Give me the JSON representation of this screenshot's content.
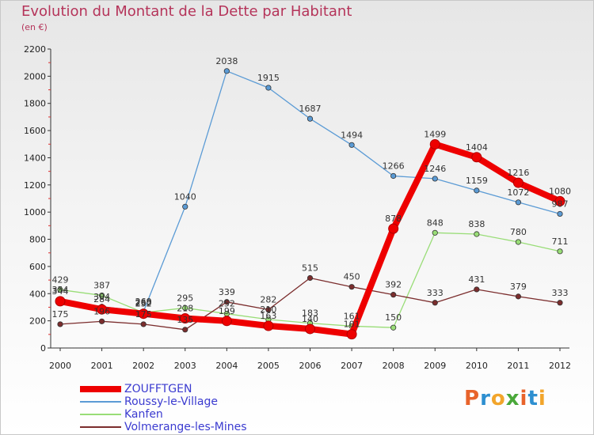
{
  "header": {
    "title": "Evolution du Montant de la Dette par Habitant",
    "subtitle": "(en €)"
  },
  "logo": {
    "text": "Proxiti",
    "colors": [
      "#e8632b",
      "#2d8fd0",
      "#f2a52b",
      "#4aa83a",
      "#e8632b",
      "#2d8fd0",
      "#f2a52b"
    ]
  },
  "chart_data": {
    "type": "line",
    "x": [
      2000,
      2001,
      2002,
      2003,
      2004,
      2005,
      2006,
      2007,
      2008,
      2009,
      2010,
      2011,
      2012
    ],
    "ylim": [
      0,
      2200
    ],
    "yticks": [
      0,
      200,
      400,
      600,
      800,
      1000,
      1200,
      1400,
      1600,
      1800,
      2000,
      2200
    ],
    "grid": false,
    "legend_position": "bottom-left",
    "series": [
      {
        "name": "ZOUFFTGEN",
        "color": "#ee0000",
        "values": [
          344,
          284,
          252,
          218,
          199,
          163,
          140,
          101,
          878,
          1499,
          1404,
          1216,
          1080
        ],
        "labels": [
          "344",
          "284",
          "252",
          "218",
          "199",
          "163",
          "140",
          "101",
          "878",
          "1499",
          "1404",
          "1216",
          "1080"
        ]
      },
      {
        "name": "Roussy-le-Village",
        "color": "#5b9bd5",
        "values": [
          354,
          304,
          269,
          1040,
          2038,
          1915,
          1687,
          1494,
          1266,
          1246,
          1159,
          1072,
          987
        ],
        "labels": [
          "354",
          "304",
          "269",
          "1040",
          "2038",
          "1915",
          "1687",
          "1494",
          "1266",
          "1246",
          "1159",
          "1072",
          "987"
        ]
      },
      {
        "name": "Kanfen",
        "color": "#99dd77",
        "values": [
          429,
          387,
          260,
          295,
          252,
          210,
          183,
          161,
          150,
          848,
          838,
          780,
          711
        ],
        "labels": [
          "429",
          "387",
          "260",
          "295",
          "252",
          "210",
          "183",
          "161",
          "150",
          "848",
          "838",
          "780",
          "711"
        ]
      },
      {
        "name": "Volmerange-les-Mines",
        "color": "#7b2d2d",
        "values": [
          175,
          196,
          175,
          135,
          339,
          282,
          515,
          450,
          392,
          333,
          431,
          379,
          333
        ],
        "labels": [
          "175",
          "196",
          "175",
          "135",
          "339",
          "282",
          "515",
          "450",
          "392",
          "333",
          "431",
          "379",
          "333"
        ]
      }
    ]
  }
}
